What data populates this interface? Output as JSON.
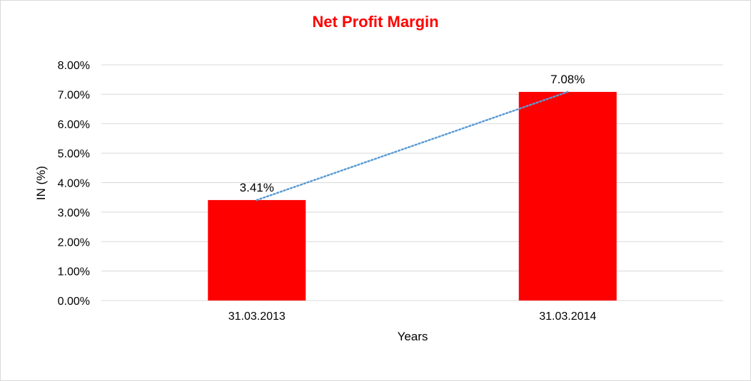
{
  "chart_data": {
    "type": "bar",
    "title": "Net Profit Margin",
    "xlabel": "Years",
    "ylabel": "IN (%)",
    "categories": [
      "31.03.2013",
      "31.03.2014"
    ],
    "series": [
      {
        "values": [
          3.41,
          7.08
        ],
        "color": "#ff0000"
      }
    ],
    "data_labels": [
      "3.41%",
      "7.08%"
    ],
    "ylim": [
      0,
      8
    ],
    "yticks": [
      0,
      1,
      2,
      3,
      4,
      5,
      6,
      7,
      8
    ],
    "ytick_labels": [
      "0.00%",
      "1.00%",
      "2.00%",
      "3.00%",
      "4.00%",
      "5.00%",
      "6.00%",
      "7.00%",
      "8.00%"
    ],
    "trendline": {
      "type": "linear",
      "style": "dotted",
      "color": "#5b9bd5"
    },
    "grid": true,
    "legend": "none",
    "title_color": "#ff0000"
  }
}
